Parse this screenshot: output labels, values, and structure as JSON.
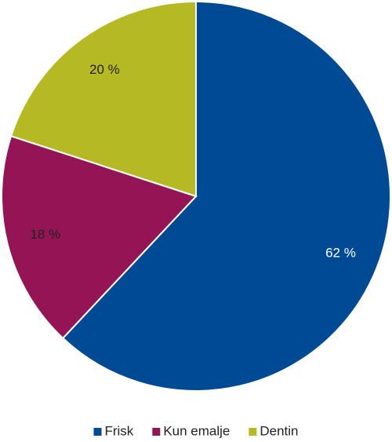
{
  "chart_data": {
    "type": "pie",
    "categories": [
      "Frisk",
      "Kun emalje",
      "Dentin"
    ],
    "values": [
      62,
      18,
      20
    ],
    "value_labels": [
      "62 %",
      "18 %",
      "20 %"
    ],
    "colors": [
      "#004a93",
      "#941556",
      "#b5b923"
    ],
    "legend": "bottom"
  }
}
